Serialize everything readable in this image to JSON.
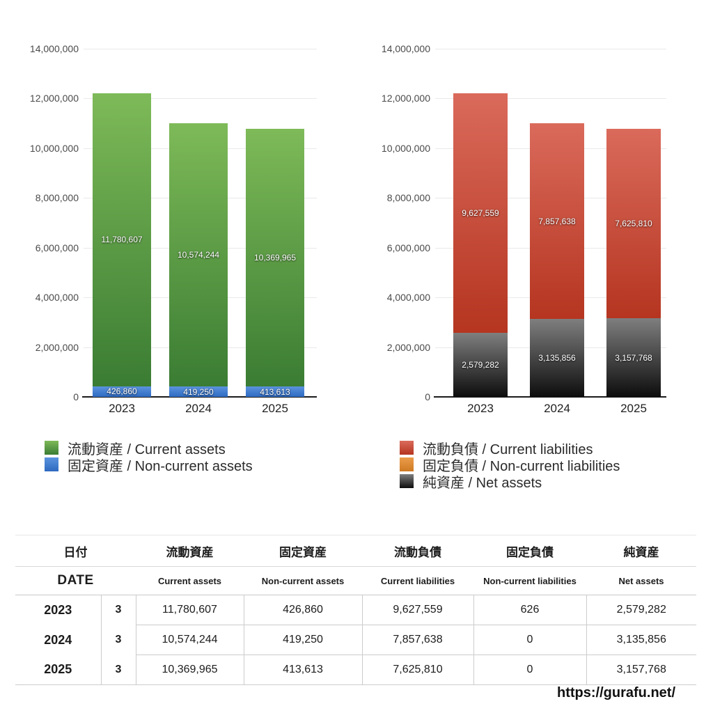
{
  "page": {
    "footer_url": "https://gurafu.net/"
  },
  "chart_data": [
    {
      "type": "bar",
      "stacked": true,
      "title": "",
      "categories": [
        "2023",
        "2024",
        "2025"
      ],
      "ylim": [
        0,
        14000000
      ],
      "grid": true,
      "legend_position": "bottom",
      "yticks": [
        {
          "value": 0,
          "label": "0"
        },
        {
          "value": 2000000,
          "label": "2,000,000"
        },
        {
          "value": 4000000,
          "label": "4,000,000"
        },
        {
          "value": 6000000,
          "label": "6,000,000"
        },
        {
          "value": 8000000,
          "label": "8,000,000"
        },
        {
          "value": 10000000,
          "label": "10,000,000"
        },
        {
          "value": 12000000,
          "label": "12,000,000"
        },
        {
          "value": 14000000,
          "label": "14,000,000"
        }
      ],
      "series": [
        {
          "name": "固定資産 / Non-current assets",
          "values": [
            426860,
            419250,
            413613
          ],
          "labels": [
            "426,860",
            "419,250",
            "413,613"
          ],
          "color_top": "#5a93de",
          "color_bottom": "#2e6ac0"
        },
        {
          "name": "流動資産 / Current assets",
          "values": [
            11780607,
            10574244,
            10369965
          ],
          "labels": [
            "11,780,607",
            "10,574,244",
            "10,369,965"
          ],
          "color_top": "#7eba58",
          "color_bottom": "#3a7c33"
        }
      ],
      "legend": [
        {
          "label": "流動資産 / Current assets",
          "color_top": "#7eba58",
          "color_bottom": "#3a7c33"
        },
        {
          "label": "固定資産 / Non-current assets",
          "color_top": "#5a93de",
          "color_bottom": "#2e6ac0"
        }
      ]
    },
    {
      "type": "bar",
      "stacked": true,
      "title": "",
      "categories": [
        "2023",
        "2024",
        "2025"
      ],
      "ylim": [
        0,
        14000000
      ],
      "grid": true,
      "legend_position": "bottom",
      "yticks": [
        {
          "value": 0,
          "label": "0"
        },
        {
          "value": 2000000,
          "label": "2,000,000"
        },
        {
          "value": 4000000,
          "label": "4,000,000"
        },
        {
          "value": 6000000,
          "label": "6,000,000"
        },
        {
          "value": 8000000,
          "label": "8,000,000"
        },
        {
          "value": 10000000,
          "label": "10,000,000"
        },
        {
          "value": 12000000,
          "label": "12,000,000"
        },
        {
          "value": 14000000,
          "label": "14,000,000"
        }
      ],
      "series": [
        {
          "name": "純資産 / Net assets",
          "values": [
            2579282,
            3135856,
            3157768
          ],
          "labels": [
            "2,579,282",
            "3,135,856",
            "3,157,768"
          ],
          "color_top": "#7f7f7f",
          "color_bottom": "#0d0d0d"
        },
        {
          "name": "固定負債 / Non-current liabilities",
          "values": [
            626,
            0,
            0
          ],
          "labels": [
            "626",
            "0",
            "0"
          ],
          "color_top": "#eb9d4a",
          "color_bottom": "#cf7a24"
        },
        {
          "name": "流動負債 / Current liabilities",
          "values": [
            9627559,
            7857638,
            7625810
          ],
          "labels": [
            "9,627,559",
            "7,857,638",
            "7,625,810"
          ],
          "color_top": "#da6a5b",
          "color_bottom": "#b53520"
        }
      ],
      "legend": [
        {
          "label": "流動負債 / Current liabilities",
          "color_top": "#da6a5b",
          "color_bottom": "#b53520"
        },
        {
          "label": "固定負債 / Non-current liabilities",
          "color_top": "#eb9d4a",
          "color_bottom": "#cf7a24"
        },
        {
          "label": "純資産 / Net assets",
          "color_top": "#7f7f7f",
          "color_bottom": "#0d0d0d"
        }
      ]
    }
  ],
  "table": {
    "header_row1": [
      "日付",
      "流動資産",
      "固定資産",
      "流動負債",
      "固定負債",
      "純資産"
    ],
    "header_row2": [
      "DATE",
      "Current assets",
      "Non-current assets",
      "Current liabilities",
      "Non-current liabilities",
      "Net assets"
    ],
    "rows": [
      {
        "year": "2023",
        "month": "3",
        "values": [
          "11,780,607",
          "426,860",
          "9,627,559",
          "626",
          "2,579,282"
        ]
      },
      {
        "year": "2024",
        "month": "3",
        "values": [
          "10,574,244",
          "419,250",
          "7,857,638",
          "0",
          "3,135,856"
        ]
      },
      {
        "year": "2025",
        "month": "3",
        "values": [
          "10,369,965",
          "413,613",
          "7,625,810",
          "0",
          "3,157,768"
        ]
      }
    ]
  }
}
